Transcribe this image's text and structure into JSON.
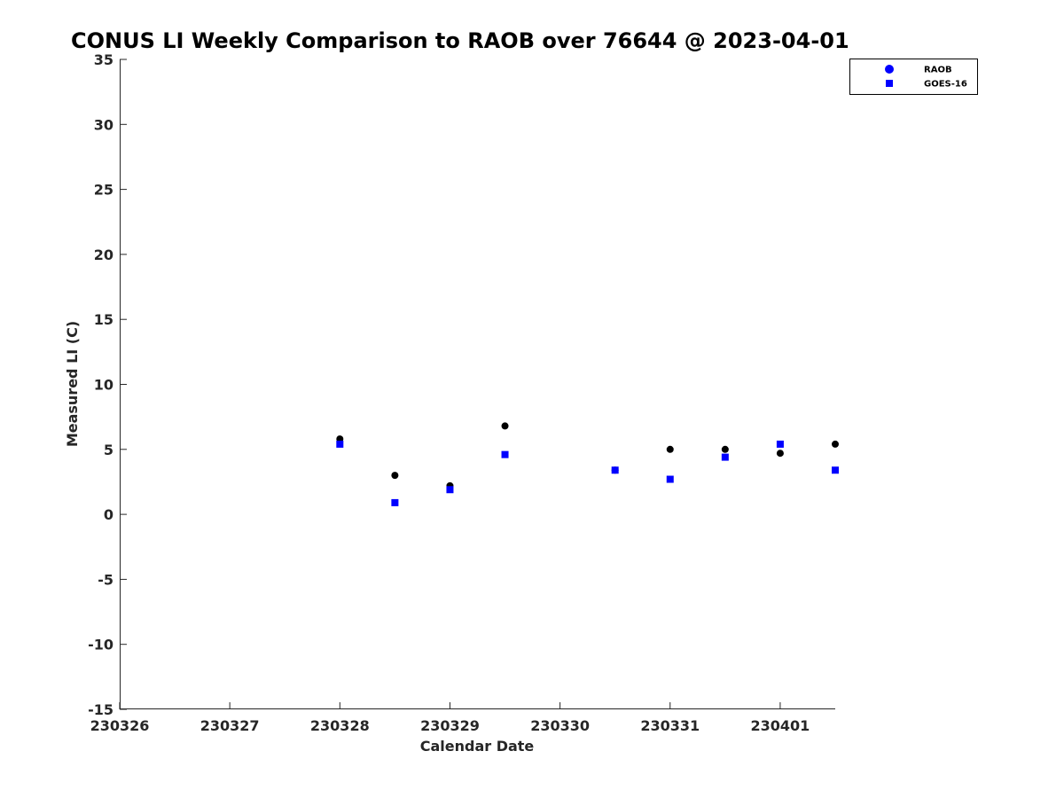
{
  "chart_data": {
    "type": "scatter",
    "title": "CONUS LI Weekly Comparison to RAOB over 76644 @ 2023-04-01",
    "xlabel": "Calendar Date",
    "ylabel": "Measured LI (C)",
    "x_tick_labels": [
      "230326",
      "230327",
      "230328",
      "230329",
      "230330",
      "230331",
      "230401"
    ],
    "xlim": [
      "2023-03-26",
      "2023-04-01T12:00"
    ],
    "ylim": [
      -15,
      35
    ],
    "y_ticks": [
      -15,
      -10,
      -5,
      0,
      5,
      10,
      15,
      20,
      25,
      30,
      35
    ],
    "legend_position": "top-right",
    "grid": false,
    "series": [
      {
        "name": "RAOB",
        "marker": "circle",
        "color": "#000000",
        "legend_color": "#0000ff",
        "points": [
          {
            "x": "2023-03-28T00:00",
            "y": 5.8
          },
          {
            "x": "2023-03-28T12:00",
            "y": 3.0
          },
          {
            "x": "2023-03-29T00:00",
            "y": 2.2
          },
          {
            "x": "2023-03-29T12:00",
            "y": 6.8
          },
          {
            "x": "2023-03-30T12:00",
            "y": 3.4
          },
          {
            "x": "2023-03-31T00:00",
            "y": 5.0
          },
          {
            "x": "2023-03-31T12:00",
            "y": 5.0
          },
          {
            "x": "2023-04-01T00:00",
            "y": 4.7
          },
          {
            "x": "2023-04-01T12:00",
            "y": 5.4
          }
        ]
      },
      {
        "name": "GOES-16",
        "marker": "square",
        "color": "#0000ff",
        "legend_color": "#0000ff",
        "points": [
          {
            "x": "2023-03-28T00:00",
            "y": 5.4
          },
          {
            "x": "2023-03-28T12:00",
            "y": 0.9
          },
          {
            "x": "2023-03-29T00:00",
            "y": 1.9
          },
          {
            "x": "2023-03-29T12:00",
            "y": 4.6
          },
          {
            "x": "2023-03-30T12:00",
            "y": 3.4
          },
          {
            "x": "2023-03-31T00:00",
            "y": 2.7
          },
          {
            "x": "2023-03-31T12:00",
            "y": 4.4
          },
          {
            "x": "2023-04-01T00:00",
            "y": 5.4
          },
          {
            "x": "2023-04-01T12:00",
            "y": 3.4
          }
        ]
      }
    ]
  }
}
